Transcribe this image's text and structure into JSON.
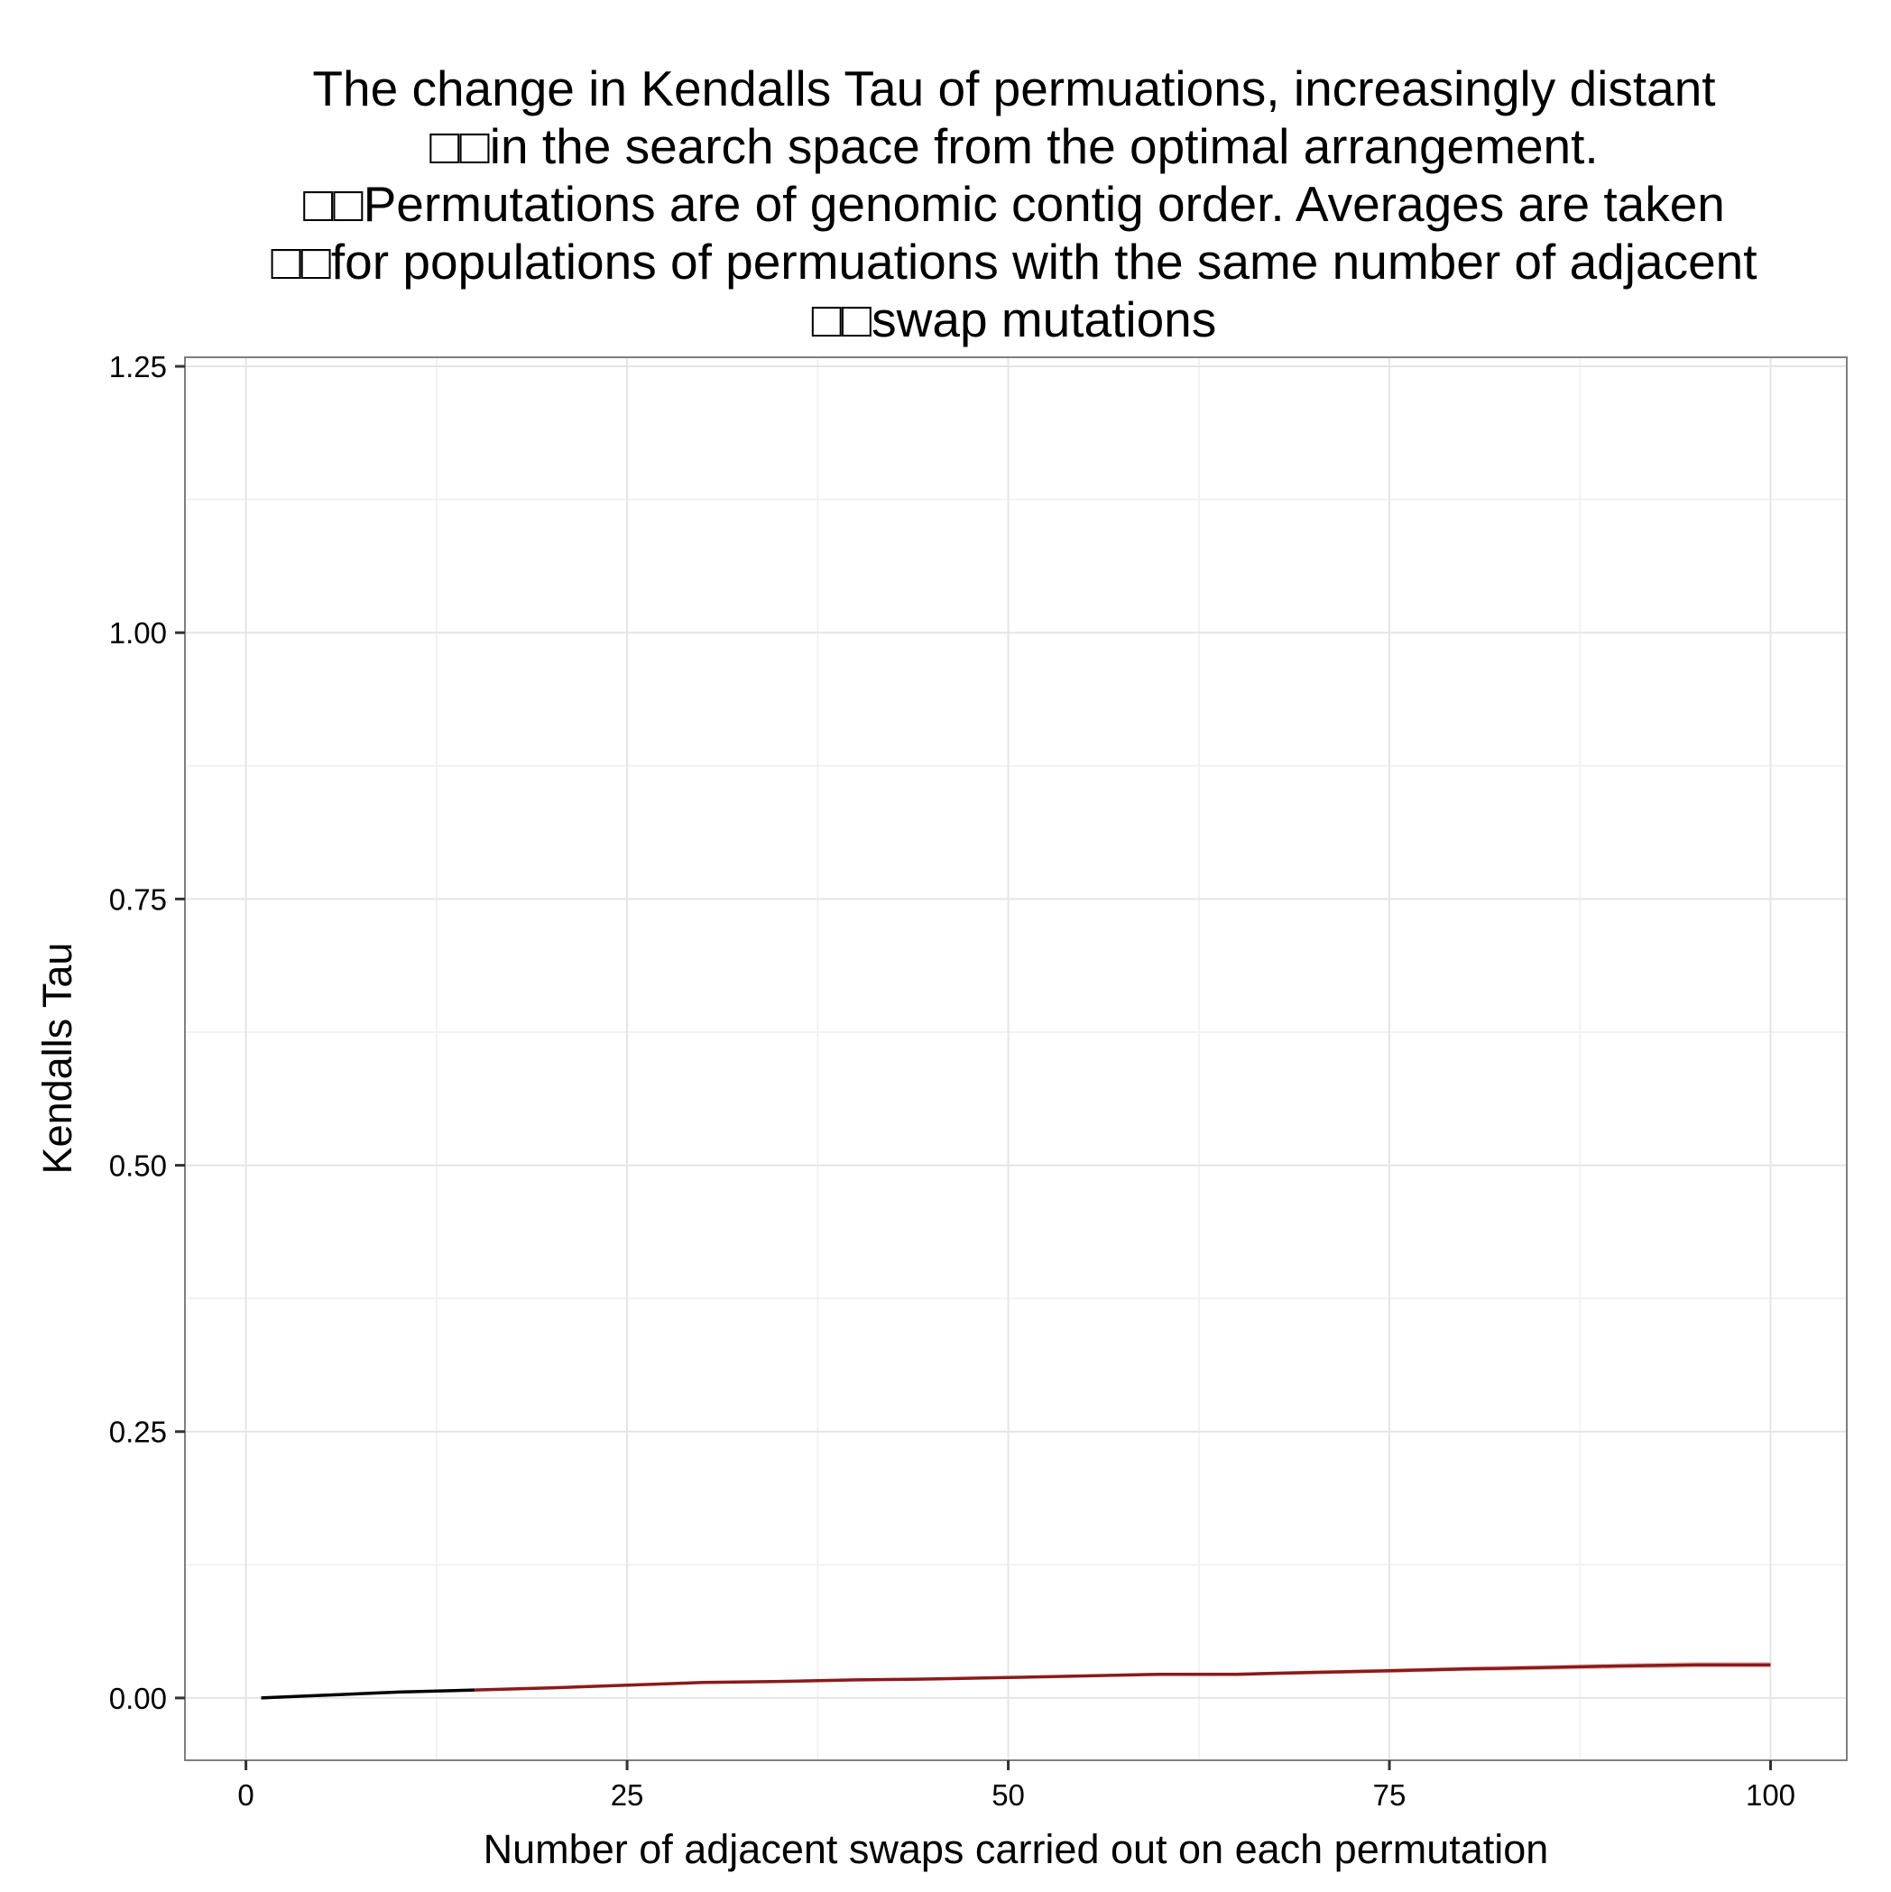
{
  "chart_data": {
    "type": "line",
    "title_lines": [
      "The change in Kendalls Tau of permuations, increasingly distant",
      "□□in the search space from the optimal arrangement.",
      "□□Permutations are of genomic contig order. Averages are taken",
      "□□for populations of permuations with the same number of adjacent",
      "□□swap mutations"
    ],
    "xlabel": "Number of adjacent swaps carried out on each permutation",
    "ylabel": "Kendalls Tau",
    "xlim": [
      -4,
      105
    ],
    "ylim": [
      -0.0585,
      1.2585
    ],
    "x_ticks": [
      {
        "value": 0,
        "label": "0"
      },
      {
        "value": 25,
        "label": "25"
      },
      {
        "value": 50,
        "label": "50"
      },
      {
        "value": 75,
        "label": "75"
      },
      {
        "value": 100,
        "label": "100"
      }
    ],
    "y_ticks": [
      {
        "value": 0,
        "label": "0.00"
      },
      {
        "value": 0.25,
        "label": "0.25"
      },
      {
        "value": 0.5,
        "label": "0.50"
      },
      {
        "value": 0.75,
        "label": "0.75"
      },
      {
        "value": 1.0,
        "label": "1.00"
      },
      {
        "value": 1.25,
        "label": "1.25"
      }
    ],
    "grid": true,
    "series": [
      {
        "x": [
          1,
          5,
          10,
          15,
          20,
          25,
          30,
          35,
          40,
          45,
          50,
          55,
          60,
          65,
          70,
          75,
          80,
          85,
          90,
          95,
          100
        ],
        "y": [
          0.0,
          0.0025,
          0.0055,
          0.0075,
          0.0095,
          0.012,
          0.0145,
          0.0155,
          0.017,
          0.0178,
          0.0192,
          0.0207,
          0.0222,
          0.0222,
          0.024,
          0.0255,
          0.0272,
          0.0285,
          0.03,
          0.031,
          0.031
        ],
        "ribbon_low": [
          0.0,
          0.0022,
          0.0051,
          0.007,
          0.0089,
          0.0113,
          0.0137,
          0.0146,
          0.016,
          0.0167,
          0.018,
          0.0194,
          0.0207,
          0.0206,
          0.0222,
          0.0236,
          0.0251,
          0.0262,
          0.0275,
          0.0283,
          0.0282
        ],
        "ribbon_high": [
          0.0,
          0.0028,
          0.0059,
          0.008,
          0.0101,
          0.0127,
          0.0153,
          0.0164,
          0.018,
          0.0189,
          0.0204,
          0.022,
          0.0237,
          0.0238,
          0.0258,
          0.0274,
          0.0293,
          0.0308,
          0.0325,
          0.0337,
          0.0338
        ],
        "line_color": "#8b1a1a",
        "start_color": "#000000",
        "ribbon_color": "#e8a0a0"
      }
    ]
  }
}
